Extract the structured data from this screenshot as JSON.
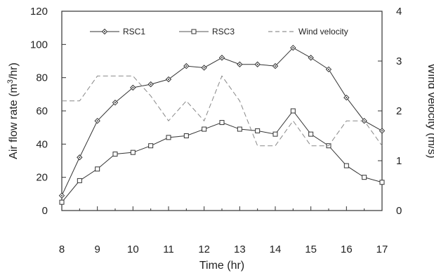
{
  "chart_data": {
    "type": "line",
    "x": [
      8,
      8.5,
      9,
      9.5,
      10,
      10.5,
      11,
      11.5,
      12,
      12.5,
      13,
      13.5,
      14,
      14.5,
      15,
      15.5,
      16,
      16.5,
      17
    ],
    "xlim": [
      8,
      17
    ],
    "ylim": [
      0,
      120
    ],
    "y2lim": [
      0,
      4
    ],
    "xlabel": "Time (hr)",
    "ylabel_left": {
      "prefix": "Air flow rate (m",
      "sup": "3",
      "suffix": "/hr)"
    },
    "ylabel_right": "Wind velocity (m/s)",
    "x_ticks": [
      "8",
      "9",
      "10",
      "11",
      "12",
      "13",
      "14",
      "15",
      "16",
      "17"
    ],
    "y_ticks_left": [
      "0",
      "20",
      "40",
      "60",
      "80",
      "100",
      "120"
    ],
    "y_ticks_right": [
      "0",
      "1",
      "2",
      "3",
      "4"
    ],
    "legend_position": "top",
    "series": [
      {
        "name": "RSC1",
        "axis": "left",
        "marker": "diamond-dot",
        "values": [
          9,
          32,
          54,
          65,
          74,
          76,
          79,
          87,
          86,
          92,
          88,
          88,
          87,
          98,
          92,
          85,
          68,
          54,
          48
        ]
      },
      {
        "name": "RSC3",
        "axis": "left",
        "marker": "square",
        "values": [
          5,
          18,
          25,
          34,
          35,
          39,
          44,
          45,
          49,
          53,
          49,
          48,
          46,
          60,
          46,
          39,
          27,
          20,
          17
        ]
      },
      {
        "name": "Wind velocity",
        "axis": "right",
        "marker": "none",
        "style": "dashed",
        "values": [
          2.2,
          2.2,
          2.7,
          2.7,
          2.7,
          2.3,
          1.8,
          2.2,
          1.8,
          2.7,
          2.2,
          1.3,
          1.3,
          1.8,
          1.3,
          1.3,
          1.8,
          1.8,
          1.3
        ]
      }
    ]
  }
}
